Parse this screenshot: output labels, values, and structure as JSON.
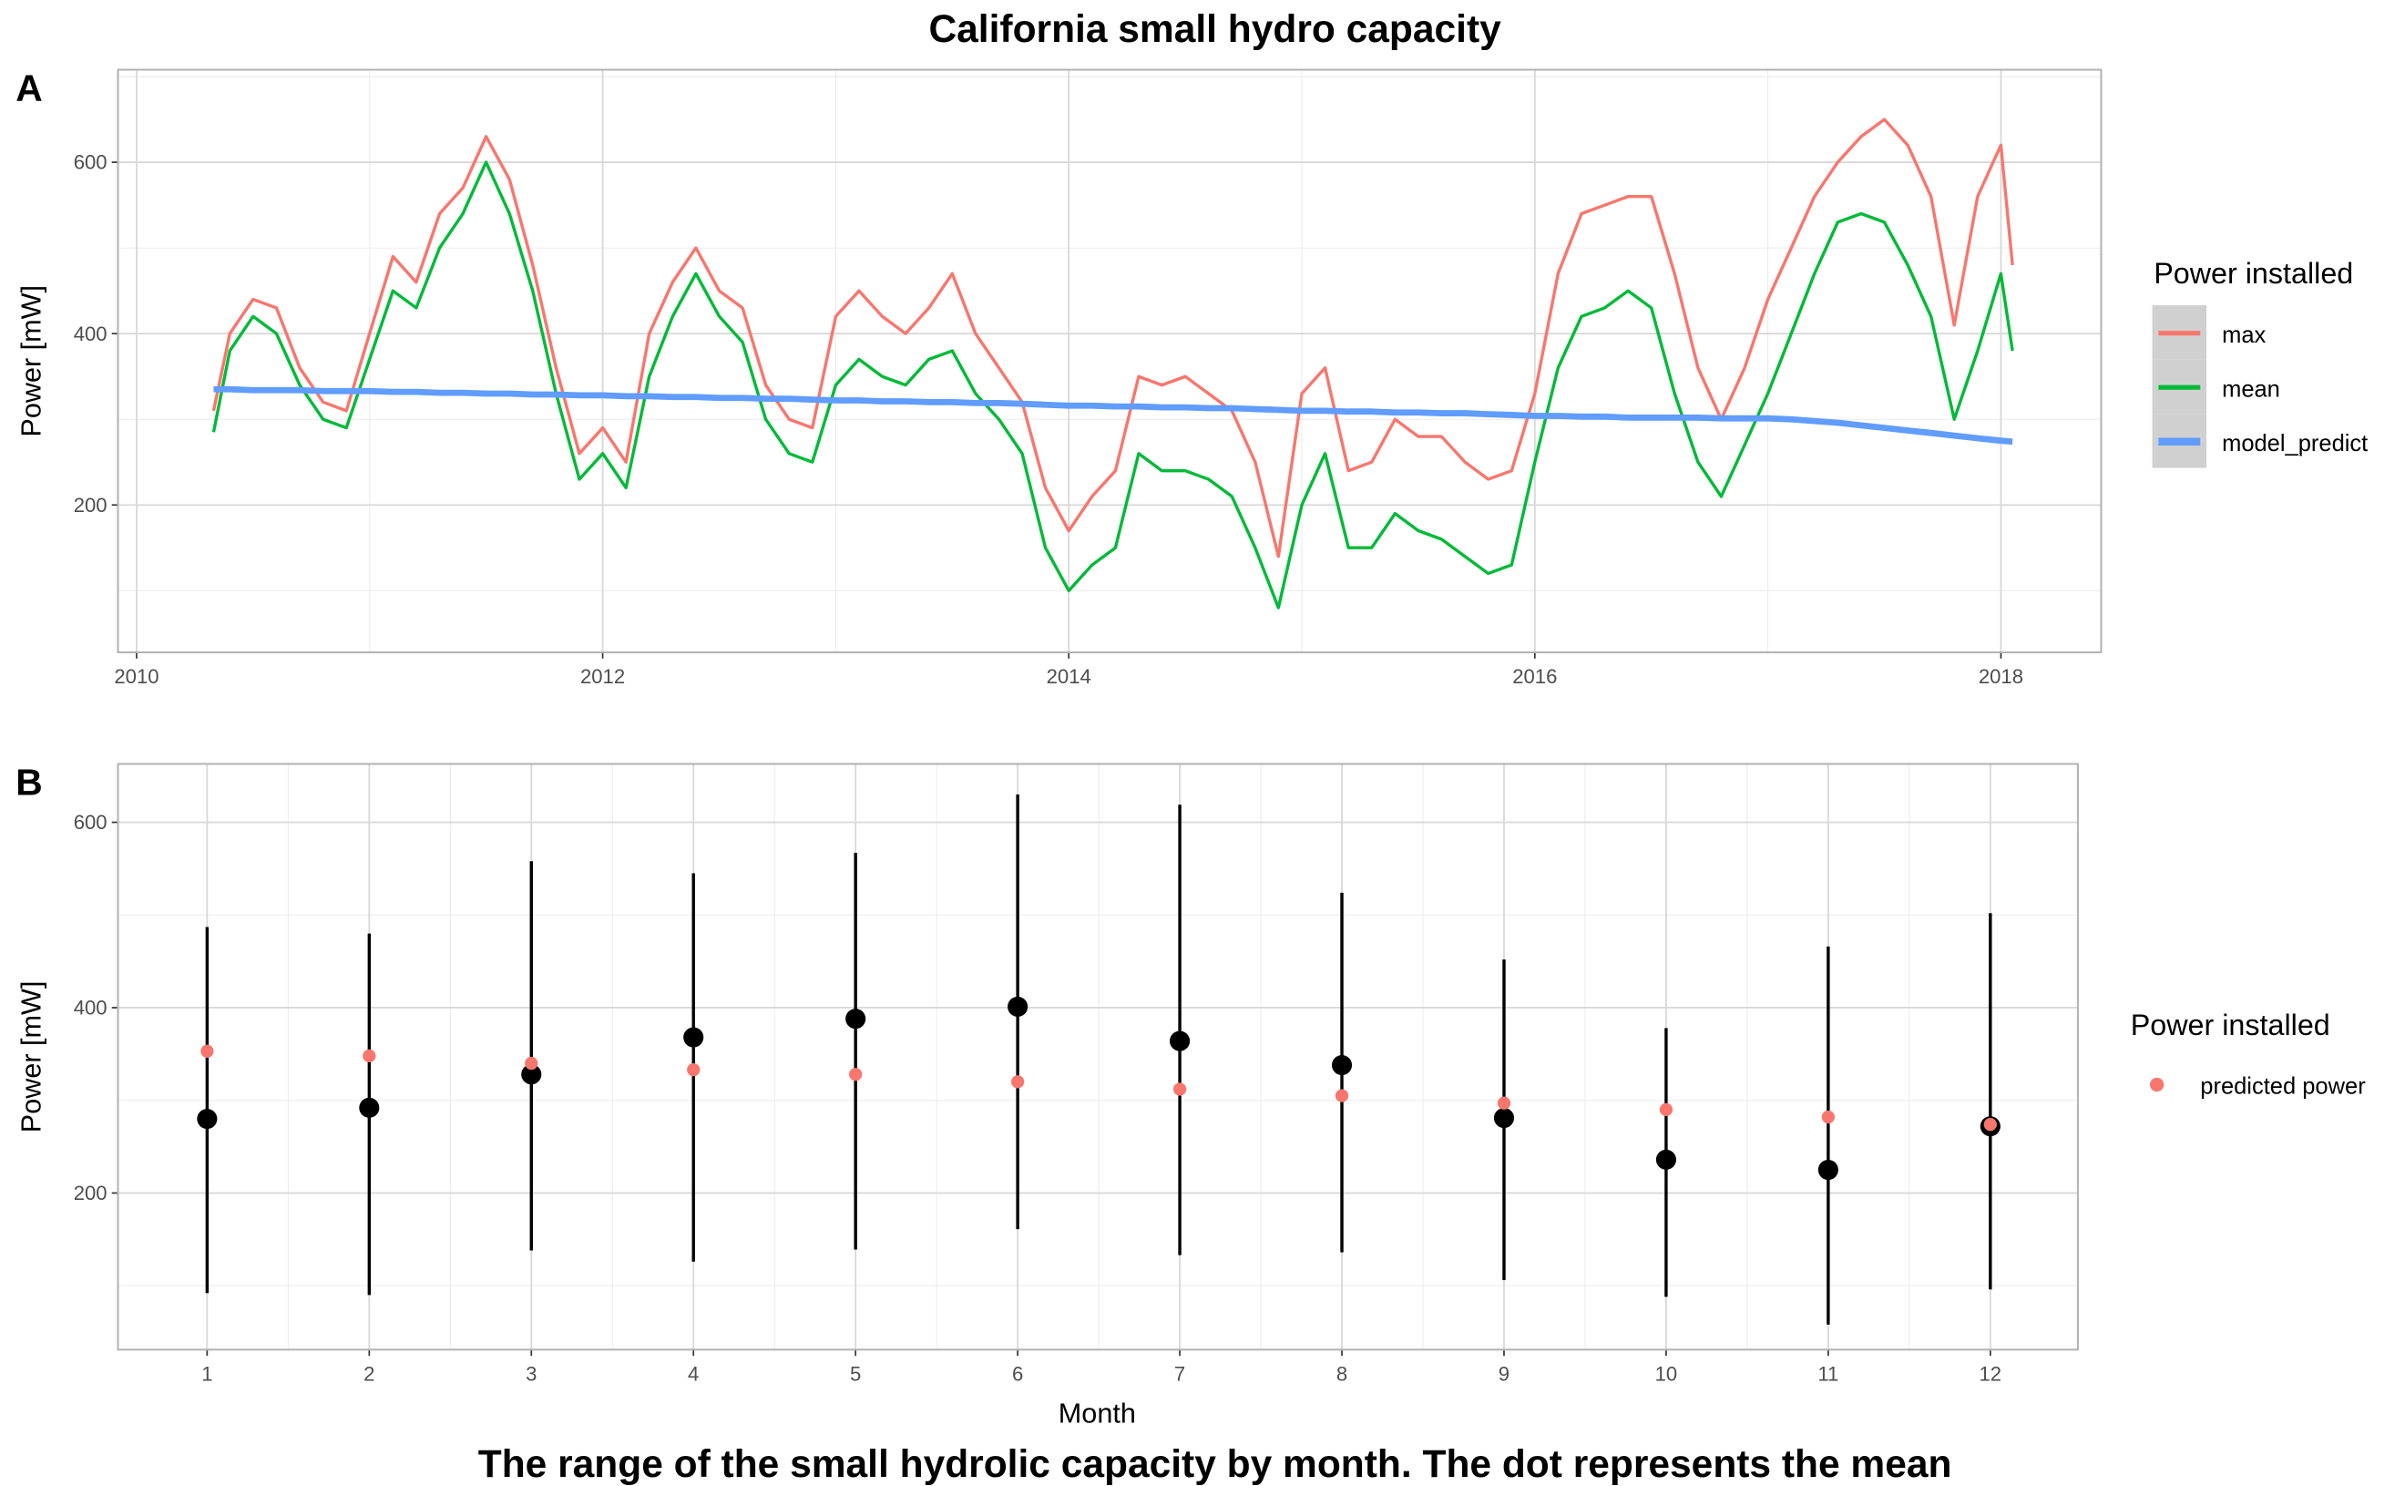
{
  "title": "California small hydro capacity",
  "caption": "The range of the small hydrolic capacity by month. The dot represents the mean",
  "chart_data": [
    {
      "panel": "A",
      "type": "line",
      "xlabel": "",
      "ylabel": "Power [mW]",
      "xlim": [
        2009.92,
        2018.43
      ],
      "ylim": [
        28,
        708
      ],
      "x_ticks": [
        2010,
        2012,
        2014,
        2016,
        2018
      ],
      "y_ticks": [
        200,
        400,
        600
      ],
      "grid": true,
      "legend_title": "Power installed",
      "legend_position": "right",
      "x": [
        2010.33,
        2010.4,
        2010.5,
        2010.6,
        2010.7,
        2010.8,
        2010.9,
        2011.0,
        2011.1,
        2011.2,
        2011.3,
        2011.4,
        2011.5,
        2011.6,
        2011.7,
        2011.8,
        2011.9,
        2012.0,
        2012.1,
        2012.2,
        2012.3,
        2012.4,
        2012.5,
        2012.6,
        2012.7,
        2012.8,
        2012.9,
        2013.0,
        2013.1,
        2013.2,
        2013.3,
        2013.4,
        2013.5,
        2013.6,
        2013.7,
        2013.8,
        2013.9,
        2014.0,
        2014.1,
        2014.2,
        2014.3,
        2014.4,
        2014.5,
        2014.6,
        2014.7,
        2014.8,
        2014.9,
        2015.0,
        2015.1,
        2015.2,
        2015.3,
        2015.4,
        2015.5,
        2015.6,
        2015.7,
        2015.8,
        2015.9,
        2016.0,
        2016.1,
        2016.2,
        2016.3,
        2016.4,
        2016.5,
        2016.6,
        2016.7,
        2016.8,
        2016.9,
        2017.0,
        2017.1,
        2017.2,
        2017.3,
        2017.4,
        2017.5,
        2017.6,
        2017.7,
        2017.8,
        2017.9,
        2018.0,
        2018.05
      ],
      "series": [
        {
          "name": "max",
          "color": "#F8766D",
          "values": [
            310,
            400,
            440,
            430,
            360,
            320,
            310,
            400,
            490,
            460,
            540,
            570,
            630,
            580,
            480,
            360,
            260,
            290,
            250,
            400,
            460,
            500,
            450,
            430,
            340,
            300,
            290,
            420,
            450,
            420,
            400,
            430,
            470,
            400,
            360,
            320,
            220,
            170,
            210,
            240,
            350,
            340,
            350,
            330,
            310,
            250,
            140,
            330,
            360,
            240,
            250,
            300,
            280,
            280,
            250,
            230,
            240,
            330,
            470,
            540,
            550,
            560,
            560,
            470,
            360,
            300,
            360,
            440,
            500,
            560,
            600,
            630,
            650,
            620,
            560,
            410,
            560,
            620,
            480
          ],
          "color_hex": "#F8766D"
        },
        {
          "name": "mean",
          "color": "#00BA38",
          "values": [
            285,
            380,
            420,
            400,
            340,
            300,
            290,
            370,
            450,
            430,
            500,
            540,
            600,
            540,
            450,
            330,
            230,
            260,
            220,
            350,
            420,
            470,
            420,
            390,
            300,
            260,
            250,
            340,
            370,
            350,
            340,
            370,
            380,
            330,
            300,
            260,
            150,
            100,
            130,
            150,
            260,
            240,
            240,
            230,
            210,
            150,
            80,
            200,
            260,
            150,
            150,
            190,
            170,
            160,
            140,
            120,
            130,
            250,
            360,
            420,
            430,
            450,
            430,
            330,
            250,
            210,
            270,
            330,
            400,
            470,
            530,
            540,
            530,
            480,
            420,
            300,
            380,
            470,
            380
          ]
        },
        {
          "name": "model_predict",
          "color": "#619CFF",
          "values": [
            335,
            335,
            334,
            334,
            334,
            333,
            333,
            333,
            332,
            332,
            331,
            331,
            330,
            330,
            329,
            329,
            328,
            328,
            327,
            327,
            326,
            326,
            325,
            325,
            324,
            324,
            323,
            322,
            322,
            321,
            321,
            320,
            320,
            319,
            319,
            318,
            317,
            316,
            316,
            315,
            315,
            314,
            314,
            313,
            313,
            312,
            311,
            310,
            310,
            309,
            309,
            308,
            308,
            307,
            307,
            306,
            305,
            304,
            304,
            303,
            303,
            302,
            302,
            302,
            302,
            301,
            301,
            301,
            300,
            298,
            296,
            293,
            290,
            287,
            284,
            281,
            278,
            275,
            274
          ]
        }
      ]
    },
    {
      "panel": "B",
      "type": "scatter",
      "xlabel": "Month",
      "ylabel": "Power [mW]",
      "xlim": [
        0.45,
        12.54
      ],
      "ylim": [
        31,
        663
      ],
      "y_ticks": [
        200,
        400,
        600
      ],
      "grid": true,
      "legend_title": "Power installed",
      "legend_position": "right",
      "categories": [
        "1",
        "2",
        "3",
        "4",
        "5",
        "6",
        "7",
        "8",
        "9",
        "10",
        "11",
        "12"
      ],
      "range_min": [
        92,
        90,
        138,
        126,
        139,
        161,
        133,
        136,
        106,
        88,
        58,
        96
      ],
      "range_max": [
        487,
        480,
        558,
        545,
        567,
        630,
        619,
        524,
        452,
        378,
        466,
        502
      ],
      "mean": [
        280,
        292,
        328,
        368,
        388,
        401,
        364,
        338,
        281,
        236,
        225,
        272
      ],
      "series": [
        {
          "name": "predicted power",
          "color": "#F8766D",
          "values": [
            353,
            348,
            340,
            333,
            328,
            320,
            312,
            305,
            297,
            290,
            282,
            274
          ]
        }
      ]
    }
  ],
  "panel_labels": [
    "A",
    "B"
  ]
}
